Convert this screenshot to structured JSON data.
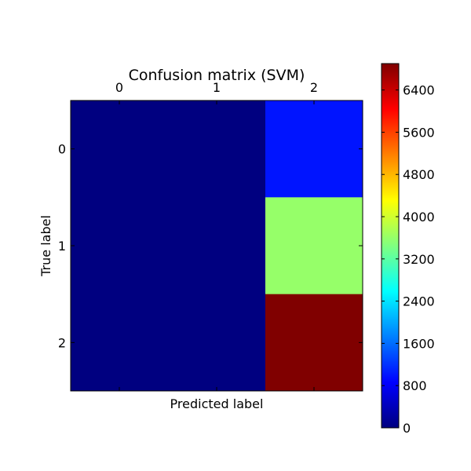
{
  "chart_data": {
    "type": "heatmap",
    "title": "Confusion matrix (SVM)",
    "xlabel": "Predicted label",
    "ylabel": "True label",
    "x_ticks": [
      "0",
      "1",
      "2"
    ],
    "y_ticks": [
      "0",
      "1",
      "2"
    ],
    "x_tick_position": "top",
    "values": [
      [
        0,
        0,
        1000
      ],
      [
        0,
        0,
        3600
      ],
      [
        0,
        0,
        6900
      ]
    ],
    "colormap": "jet",
    "colorbar": {
      "min": 0,
      "max": 6900,
      "ticks": [
        0,
        800,
        1600,
        2400,
        3200,
        4000,
        4800,
        5600,
        6400
      ],
      "tick_labels": [
        "0",
        "800",
        "1600",
        "2400",
        "3200",
        "4000",
        "4800",
        "5600",
        "6400"
      ],
      "placement": "right"
    },
    "grid": false
  }
}
